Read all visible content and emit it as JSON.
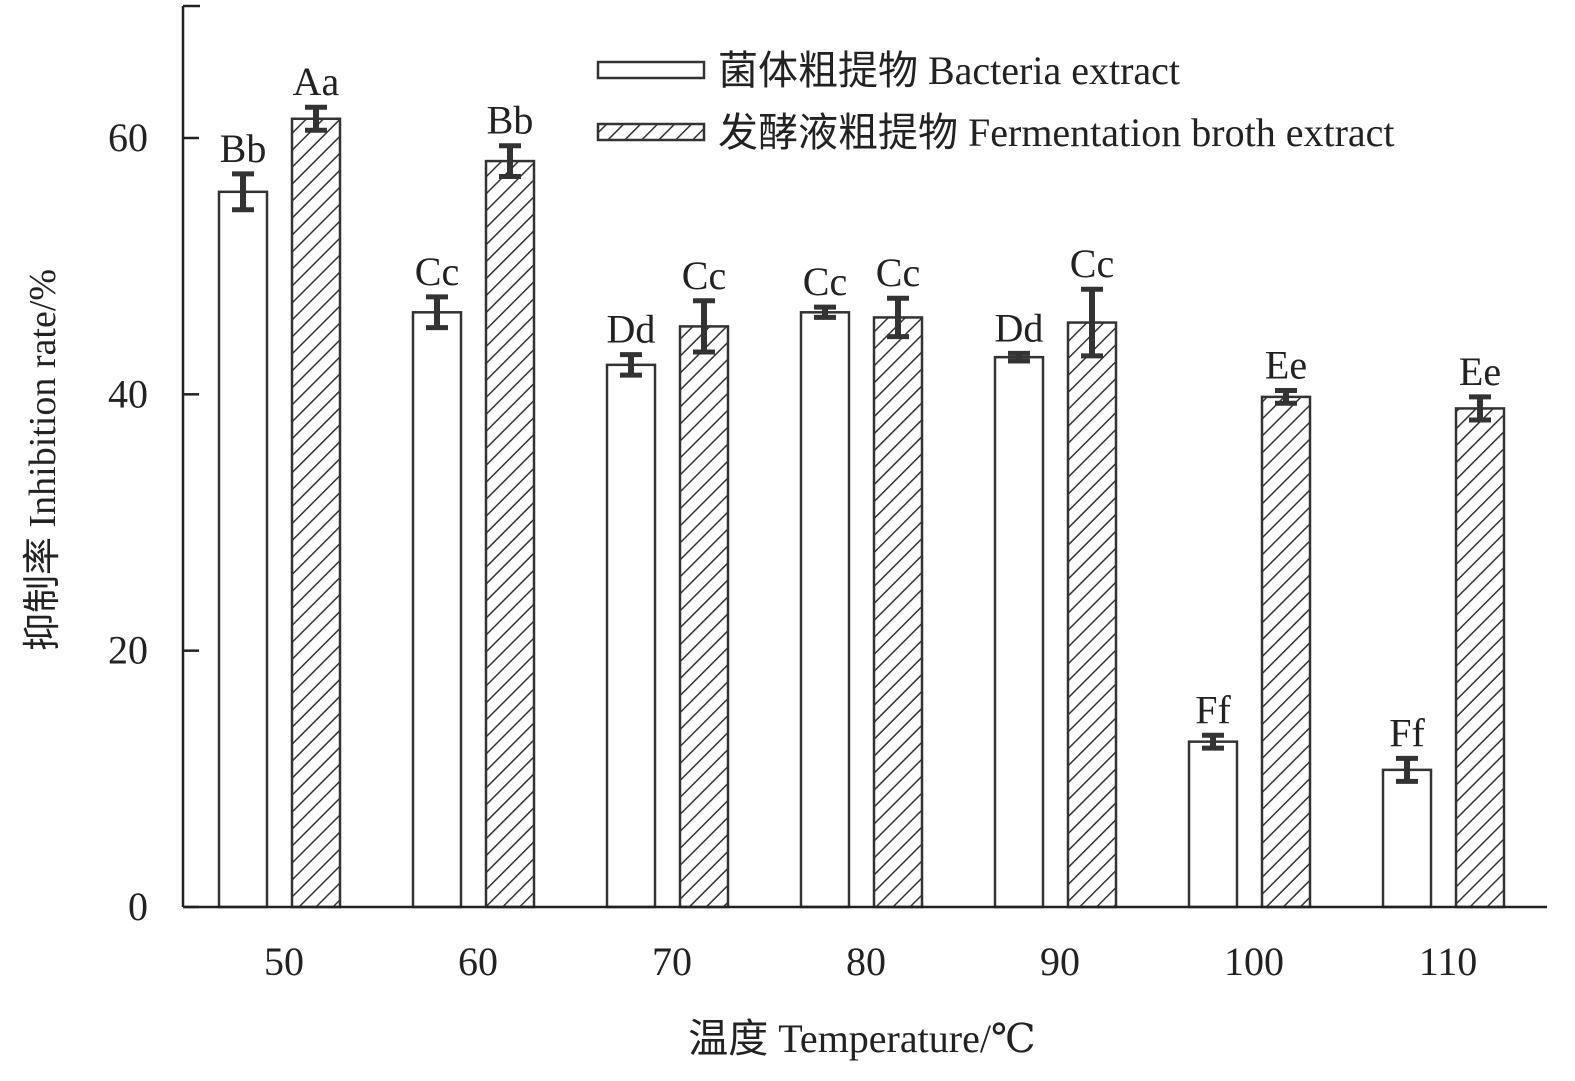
{
  "chart_data": {
    "type": "bar",
    "categories": [
      "50",
      "60",
      "70",
      "80",
      "90",
      "100",
      "110"
    ],
    "series": [
      {
        "name": "菌体粗提物 Bacteria extract",
        "pattern": "none",
        "values": [
          55.8,
          46.4,
          42.3,
          46.4,
          42.9,
          12.9,
          10.7
        ],
        "errors": [
          1.4,
          1.2,
          0.8,
          0.4,
          0.3,
          0.5,
          0.9
        ],
        "labels": [
          "Bb",
          "Cc",
          "Dd",
          "Cc",
          "Dd",
          "Ff",
          "Ff"
        ]
      },
      {
        "name": "发酵液粗提物 Fermentation broth extract",
        "pattern": "hatch",
        "values": [
          61.5,
          58.2,
          45.3,
          46.0,
          45.6,
          39.8,
          38.9
        ],
        "errors": [
          0.9,
          1.2,
          2.0,
          1.5,
          2.6,
          0.5,
          0.9
        ],
        "labels": [
          "Aa",
          "Bb",
          "Cc",
          "Cc",
          "Cc",
          "Ee",
          "Ee"
        ]
      }
    ],
    "xlabel": "温度 Temperature/℃",
    "ylabel": "抑制率 Inhibition rate/%",
    "ylim": [
      0,
      70
    ],
    "yticks": [
      0,
      20,
      40,
      60
    ],
    "grid": false,
    "legend": "top-right",
    "colors": {
      "axis": "#222222",
      "bar_edge": "#333333",
      "error_bar": "#333333",
      "hatch": "#333333"
    }
  }
}
